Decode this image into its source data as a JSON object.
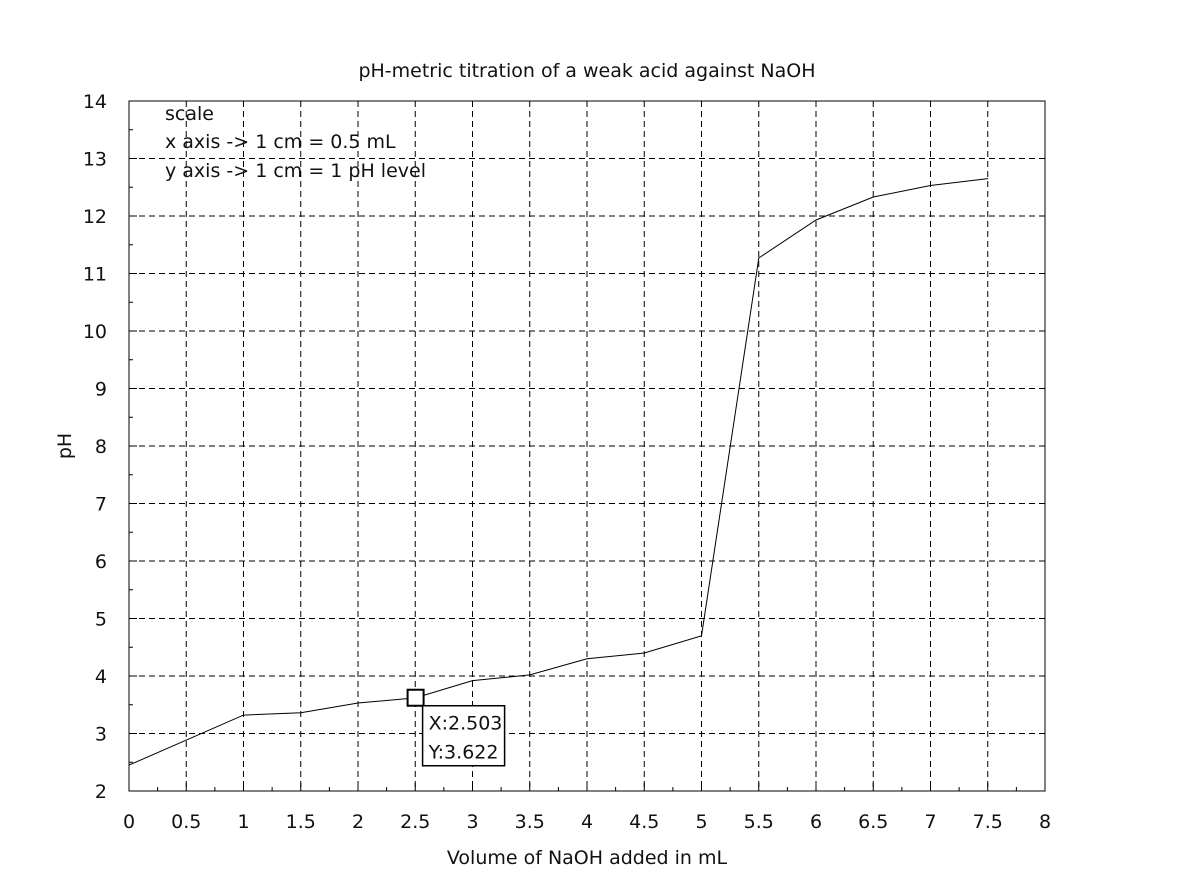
{
  "chart_data": {
    "type": "line",
    "title": "pH-metric titration of a weak acid against NaOH",
    "xlabel": "Volume of NaOH added in mL",
    "ylabel": "pH",
    "xlim": [
      0,
      8
    ],
    "ylim": [
      2,
      14
    ],
    "x_ticks": [
      "0",
      "0.5",
      "1",
      "1.5",
      "2",
      "2.5",
      "3",
      "3.5",
      "4",
      "4.5",
      "5",
      "5.5",
      "6",
      "6.5",
      "7",
      "7.5",
      "8"
    ],
    "y_ticks": [
      "2",
      "3",
      "4",
      "5",
      "6",
      "7",
      "8",
      "9",
      "10",
      "11",
      "12",
      "13",
      "14"
    ],
    "grid": true,
    "series": [
      {
        "x": [
          0,
          1,
          1.5,
          2,
          2.5,
          3,
          3.5,
          4,
          4.5,
          5,
          5.5,
          6,
          6.5,
          7,
          7.5
        ],
        "y": [
          2.45,
          3.32,
          3.36,
          3.53,
          3.62,
          3.92,
          4.02,
          4.3,
          4.4,
          4.7,
          11.27,
          11.93,
          12.33,
          12.53,
          12.65
        ]
      }
    ],
    "annotation": {
      "lines": [
        "scale",
        "x axis -> 1 cm = 0.5 mL",
        "y axis -> 1 cm = 1 pH level"
      ]
    },
    "datatip": {
      "x": 2.503,
      "y": 3.622,
      "x_label": "X:2.503",
      "y_label": "Y:3.622"
    },
    "colors": {
      "line": "#000000",
      "grid": "#000000",
      "background": "#ffffff"
    }
  }
}
